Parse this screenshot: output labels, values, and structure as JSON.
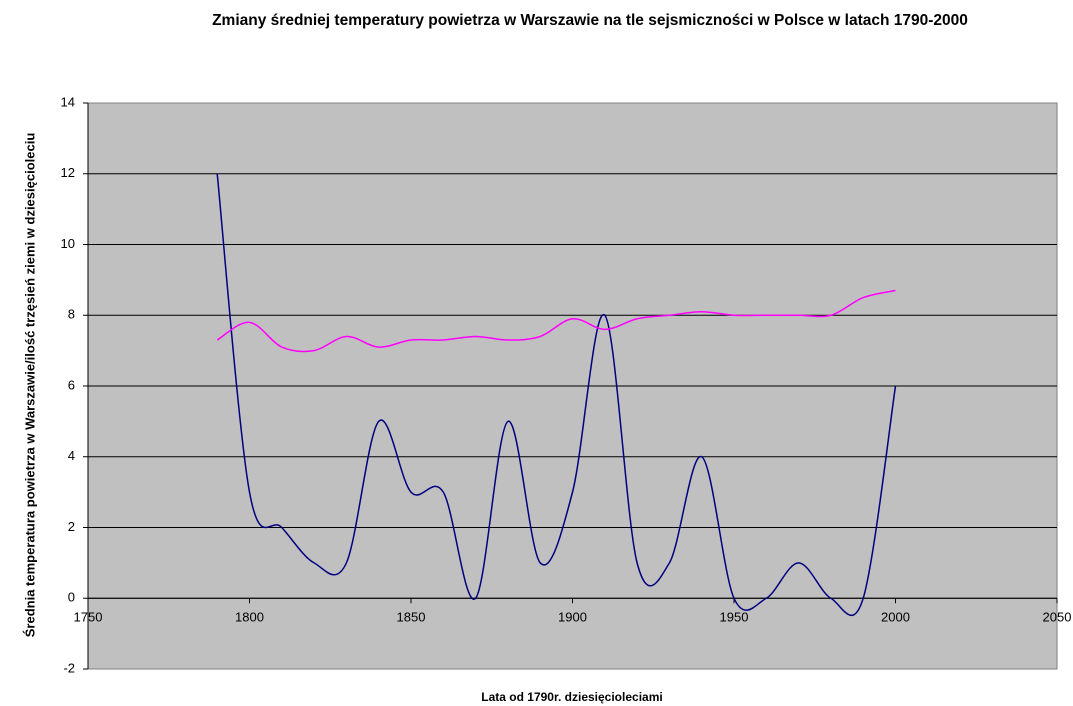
{
  "chart_data": {
    "type": "line",
    "title": "Zmiany średniej temperatury powietrza w Warszawie na tle sejsmiczności w Polsce w latach 1790-2000",
    "xlabel": "Lata od 1790r. dziesięcioleciami",
    "ylabel": "Średnia temperatura powietrza w Warszawie/ilość trzęsień ziemi w dziesięcioleciu",
    "x": [
      1790,
      1800,
      1810,
      1820,
      1830,
      1840,
      1850,
      1860,
      1870,
      1880,
      1890,
      1900,
      1910,
      1920,
      1930,
      1940,
      1950,
      1960,
      1970,
      1980,
      1990,
      2000
    ],
    "series": [
      {
        "color": "#000080",
        "values": [
          12,
          3,
          2,
          1,
          1,
          5,
          3,
          3,
          0,
          5,
          1,
          3,
          8,
          1,
          1,
          4,
          0,
          0,
          1,
          0,
          0,
          6
        ]
      },
      {
        "color": "#ff00ff",
        "values": [
          7.3,
          7.8,
          7.1,
          7.0,
          7.4,
          7.1,
          7.3,
          7.3,
          7.4,
          7.3,
          7.4,
          7.9,
          7.6,
          7.9,
          8.0,
          8.1,
          8.0,
          8.0,
          8.0,
          8.0,
          8.5,
          8.7
        ]
      }
    ],
    "xlim": [
      1750,
      2050
    ],
    "xticks": [
      1750,
      1800,
      1850,
      1900,
      1950,
      2000,
      2050
    ],
    "ylim": [
      -2,
      14
    ],
    "yticks": [
      -2,
      0,
      2,
      4,
      6,
      8,
      10,
      12,
      14
    ],
    "grid": true,
    "smooth": true
  }
}
